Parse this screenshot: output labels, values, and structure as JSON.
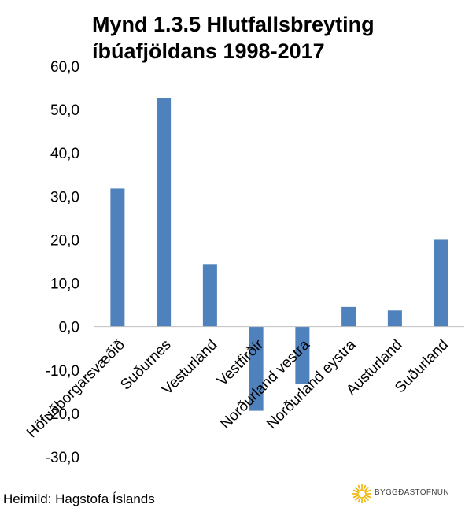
{
  "chart_data": {
    "type": "bar",
    "title": "Mynd 1.3.5 Hlutfallsbreyting íbúafjöldans 1998-2017",
    "title_lines": [
      "Mynd 1.3.5 Hlutfallsbreyting",
      "íbúafjöldans 1998-2017"
    ],
    "categories": [
      "Höfuðborgarsvæðið",
      "Suðurnes",
      "Vesturland",
      "Vestfirðir",
      "Norðurland vestra",
      "Norðurland eystra",
      "Austurland",
      "Suðurland"
    ],
    "values": [
      31.8,
      52.7,
      14.4,
      -19.4,
      -13.2,
      4.5,
      3.7,
      20.0
    ],
    "y_ticks": [
      "60,0",
      "50,0",
      "40,0",
      "30,0",
      "20,0",
      "10,0",
      "0,0",
      "-10,0",
      "-20,0",
      "-30,0"
    ],
    "ylim": [
      -30,
      60
    ],
    "grid": false,
    "legend": "none",
    "bar_color": "#4f81bd"
  },
  "source": "Heimild: Hagstofa Íslands",
  "logo": {
    "text": "BYGGÐASTOFNUN",
    "icon": "sunburst-icon",
    "color": "#f0b400"
  }
}
